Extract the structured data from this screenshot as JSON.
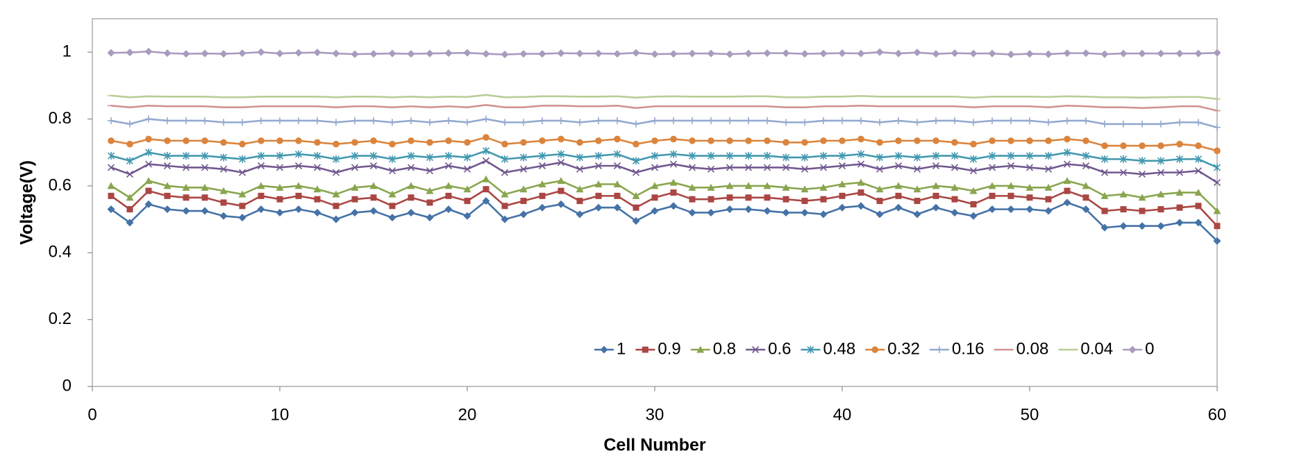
{
  "chart_data": {
    "type": "line",
    "x_label": "Cell Number",
    "y_label": "Voltage(V)",
    "x": [
      1,
      2,
      3,
      4,
      5,
      6,
      7,
      8,
      9,
      10,
      11,
      12,
      13,
      14,
      15,
      16,
      17,
      18,
      19,
      20,
      21,
      22,
      23,
      24,
      25,
      26,
      27,
      28,
      29,
      30,
      31,
      32,
      33,
      34,
      35,
      36,
      37,
      38,
      39,
      40,
      41,
      42,
      43,
      44,
      45,
      46,
      47,
      48,
      49,
      50,
      51,
      52,
      53,
      54,
      55,
      56,
      57,
      58,
      59,
      60
    ],
    "xlim": [
      0,
      60
    ],
    "xticks": [
      0,
      10,
      20,
      30,
      40,
      50,
      60
    ],
    "ylim": [
      0,
      1.1
    ],
    "yticks": [
      0,
      0.2,
      0.4,
      0.6,
      0.8,
      1
    ],
    "grid": false,
    "legend": "bottom-right",
    "series": [
      {
        "name": "1",
        "color": "#4572a7",
        "marker": "diamond",
        "values": [
          0.53,
          0.49,
          0.545,
          0.53,
          0.525,
          0.525,
          0.51,
          0.505,
          0.53,
          0.52,
          0.53,
          0.52,
          0.5,
          0.52,
          0.525,
          0.505,
          0.52,
          0.505,
          0.53,
          0.51,
          0.555,
          0.5,
          0.515,
          0.535,
          0.545,
          0.515,
          0.535,
          0.535,
          0.495,
          0.525,
          0.54,
          0.52,
          0.52,
          0.53,
          0.53,
          0.525,
          0.52,
          0.52,
          0.515,
          0.535,
          0.54,
          0.515,
          0.535,
          0.515,
          0.535,
          0.52,
          0.51,
          0.53,
          0.53,
          0.53,
          0.525,
          0.55,
          0.53,
          0.475,
          0.48,
          0.48,
          0.48,
          0.49,
          0.49,
          0.435
        ]
      },
      {
        "name": "0.9",
        "color": "#aa4643",
        "marker": "square",
        "values": [
          0.57,
          0.53,
          0.585,
          0.57,
          0.565,
          0.565,
          0.55,
          0.54,
          0.57,
          0.56,
          0.57,
          0.56,
          0.54,
          0.56,
          0.565,
          0.54,
          0.565,
          0.55,
          0.57,
          0.555,
          0.59,
          0.54,
          0.555,
          0.57,
          0.585,
          0.555,
          0.57,
          0.57,
          0.535,
          0.565,
          0.58,
          0.56,
          0.56,
          0.565,
          0.565,
          0.565,
          0.56,
          0.555,
          0.56,
          0.57,
          0.58,
          0.555,
          0.57,
          0.555,
          0.57,
          0.56,
          0.545,
          0.57,
          0.57,
          0.565,
          0.56,
          0.585,
          0.565,
          0.525,
          0.53,
          0.525,
          0.53,
          0.535,
          0.54,
          0.48
        ]
      },
      {
        "name": "0.8",
        "color": "#89a54e",
        "marker": "triangle",
        "values": [
          0.6,
          0.565,
          0.615,
          0.6,
          0.595,
          0.595,
          0.585,
          0.575,
          0.6,
          0.595,
          0.6,
          0.59,
          0.575,
          0.595,
          0.6,
          0.575,
          0.6,
          0.585,
          0.6,
          0.59,
          0.62,
          0.575,
          0.59,
          0.605,
          0.615,
          0.59,
          0.605,
          0.605,
          0.57,
          0.6,
          0.61,
          0.595,
          0.595,
          0.6,
          0.6,
          0.6,
          0.595,
          0.59,
          0.595,
          0.605,
          0.61,
          0.59,
          0.6,
          0.59,
          0.6,
          0.595,
          0.585,
          0.6,
          0.6,
          0.595,
          0.595,
          0.615,
          0.6,
          0.57,
          0.575,
          0.565,
          0.575,
          0.58,
          0.58,
          0.525
        ]
      },
      {
        "name": "0.6",
        "color": "#71588f",
        "marker": "x",
        "values": [
          0.655,
          0.635,
          0.665,
          0.66,
          0.655,
          0.655,
          0.65,
          0.64,
          0.66,
          0.655,
          0.66,
          0.655,
          0.64,
          0.655,
          0.66,
          0.645,
          0.655,
          0.645,
          0.66,
          0.65,
          0.675,
          0.64,
          0.65,
          0.66,
          0.67,
          0.65,
          0.66,
          0.66,
          0.64,
          0.655,
          0.665,
          0.655,
          0.65,
          0.655,
          0.655,
          0.655,
          0.655,
          0.65,
          0.655,
          0.66,
          0.665,
          0.65,
          0.66,
          0.65,
          0.66,
          0.655,
          0.645,
          0.655,
          0.66,
          0.655,
          0.65,
          0.665,
          0.66,
          0.64,
          0.64,
          0.635,
          0.64,
          0.64,
          0.645,
          0.61
        ]
      },
      {
        "name": "0.48",
        "color": "#4198af",
        "marker": "star",
        "values": [
          0.69,
          0.675,
          0.7,
          0.69,
          0.69,
          0.69,
          0.685,
          0.68,
          0.69,
          0.69,
          0.695,
          0.69,
          0.68,
          0.69,
          0.69,
          0.68,
          0.69,
          0.685,
          0.69,
          0.685,
          0.705,
          0.68,
          0.685,
          0.69,
          0.695,
          0.685,
          0.69,
          0.695,
          0.675,
          0.69,
          0.695,
          0.69,
          0.69,
          0.69,
          0.69,
          0.69,
          0.685,
          0.685,
          0.69,
          0.69,
          0.695,
          0.685,
          0.69,
          0.685,
          0.69,
          0.69,
          0.68,
          0.69,
          0.69,
          0.69,
          0.69,
          0.7,
          0.69,
          0.68,
          0.68,
          0.675,
          0.675,
          0.68,
          0.68,
          0.655
        ]
      },
      {
        "name": "0.32",
        "color": "#db843d",
        "marker": "circle",
        "values": [
          0.735,
          0.725,
          0.74,
          0.735,
          0.735,
          0.735,
          0.73,
          0.725,
          0.735,
          0.735,
          0.735,
          0.73,
          0.725,
          0.73,
          0.735,
          0.725,
          0.735,
          0.73,
          0.735,
          0.73,
          0.745,
          0.725,
          0.73,
          0.735,
          0.74,
          0.73,
          0.735,
          0.74,
          0.725,
          0.735,
          0.74,
          0.735,
          0.735,
          0.735,
          0.735,
          0.735,
          0.73,
          0.73,
          0.735,
          0.735,
          0.74,
          0.73,
          0.735,
          0.735,
          0.735,
          0.73,
          0.725,
          0.735,
          0.735,
          0.735,
          0.735,
          0.74,
          0.735,
          0.72,
          0.72,
          0.72,
          0.72,
          0.725,
          0.72,
          0.705
        ]
      },
      {
        "name": "0.16",
        "color": "#93a9cf",
        "marker": "plus",
        "values": [
          0.795,
          0.785,
          0.8,
          0.795,
          0.795,
          0.795,
          0.79,
          0.79,
          0.795,
          0.795,
          0.795,
          0.795,
          0.79,
          0.795,
          0.795,
          0.79,
          0.795,
          0.79,
          0.795,
          0.79,
          0.8,
          0.79,
          0.79,
          0.795,
          0.795,
          0.79,
          0.795,
          0.795,
          0.785,
          0.795,
          0.795,
          0.795,
          0.795,
          0.795,
          0.795,
          0.795,
          0.79,
          0.79,
          0.795,
          0.795,
          0.795,
          0.79,
          0.795,
          0.79,
          0.795,
          0.795,
          0.79,
          0.795,
          0.795,
          0.795,
          0.79,
          0.795,
          0.795,
          0.785,
          0.785,
          0.785,
          0.785,
          0.79,
          0.79,
          0.775
        ]
      },
      {
        "name": "0.08",
        "color": "#d19392",
        "marker": "dash",
        "values": [
          0.84,
          0.835,
          0.84,
          0.838,
          0.838,
          0.838,
          0.835,
          0.835,
          0.838,
          0.838,
          0.838,
          0.838,
          0.835,
          0.838,
          0.838,
          0.835,
          0.838,
          0.835,
          0.838,
          0.835,
          0.842,
          0.835,
          0.835,
          0.84,
          0.84,
          0.838,
          0.838,
          0.84,
          0.833,
          0.838,
          0.838,
          0.838,
          0.838,
          0.838,
          0.838,
          0.838,
          0.835,
          0.835,
          0.838,
          0.838,
          0.84,
          0.838,
          0.838,
          0.838,
          0.838,
          0.838,
          0.835,
          0.838,
          0.838,
          0.838,
          0.835,
          0.84,
          0.838,
          0.835,
          0.835,
          0.833,
          0.835,
          0.838,
          0.838,
          0.825
        ]
      },
      {
        "name": "0.04",
        "color": "#b9cd96",
        "marker": "dash",
        "values": [
          0.87,
          0.865,
          0.868,
          0.867,
          0.867,
          0.867,
          0.865,
          0.865,
          0.867,
          0.867,
          0.867,
          0.867,
          0.865,
          0.867,
          0.867,
          0.865,
          0.867,
          0.865,
          0.867,
          0.866,
          0.872,
          0.865,
          0.866,
          0.868,
          0.868,
          0.867,
          0.867,
          0.868,
          0.864,
          0.867,
          0.868,
          0.867,
          0.867,
          0.867,
          0.868,
          0.868,
          0.865,
          0.865,
          0.867,
          0.867,
          0.869,
          0.867,
          0.867,
          0.867,
          0.867,
          0.867,
          0.864,
          0.867,
          0.867,
          0.867,
          0.866,
          0.868,
          0.867,
          0.865,
          0.865,
          0.864,
          0.865,
          0.866,
          0.866,
          0.86
        ]
      },
      {
        "name": "0",
        "color": "#a99bbd",
        "marker": "diamond",
        "values": [
          0.998,
          0.999,
          1.002,
          0.997,
          0.995,
          0.996,
          0.995,
          0.997,
          1.0,
          0.996,
          0.998,
          0.999,
          0.996,
          0.994,
          0.995,
          0.996,
          0.995,
          0.996,
          0.997,
          0.998,
          0.995,
          0.993,
          0.995,
          0.995,
          0.997,
          0.996,
          0.996,
          0.995,
          0.998,
          0.994,
          0.995,
          0.996,
          0.996,
          0.994,
          0.996,
          0.997,
          0.997,
          0.995,
          0.996,
          0.997,
          0.996,
          1.0,
          0.996,
          0.999,
          0.995,
          0.997,
          0.996,
          0.996,
          0.993,
          0.995,
          0.994,
          0.997,
          0.997,
          0.994,
          0.996,
          0.996,
          0.996,
          0.996,
          0.996,
          0.998
        ]
      }
    ]
  }
}
